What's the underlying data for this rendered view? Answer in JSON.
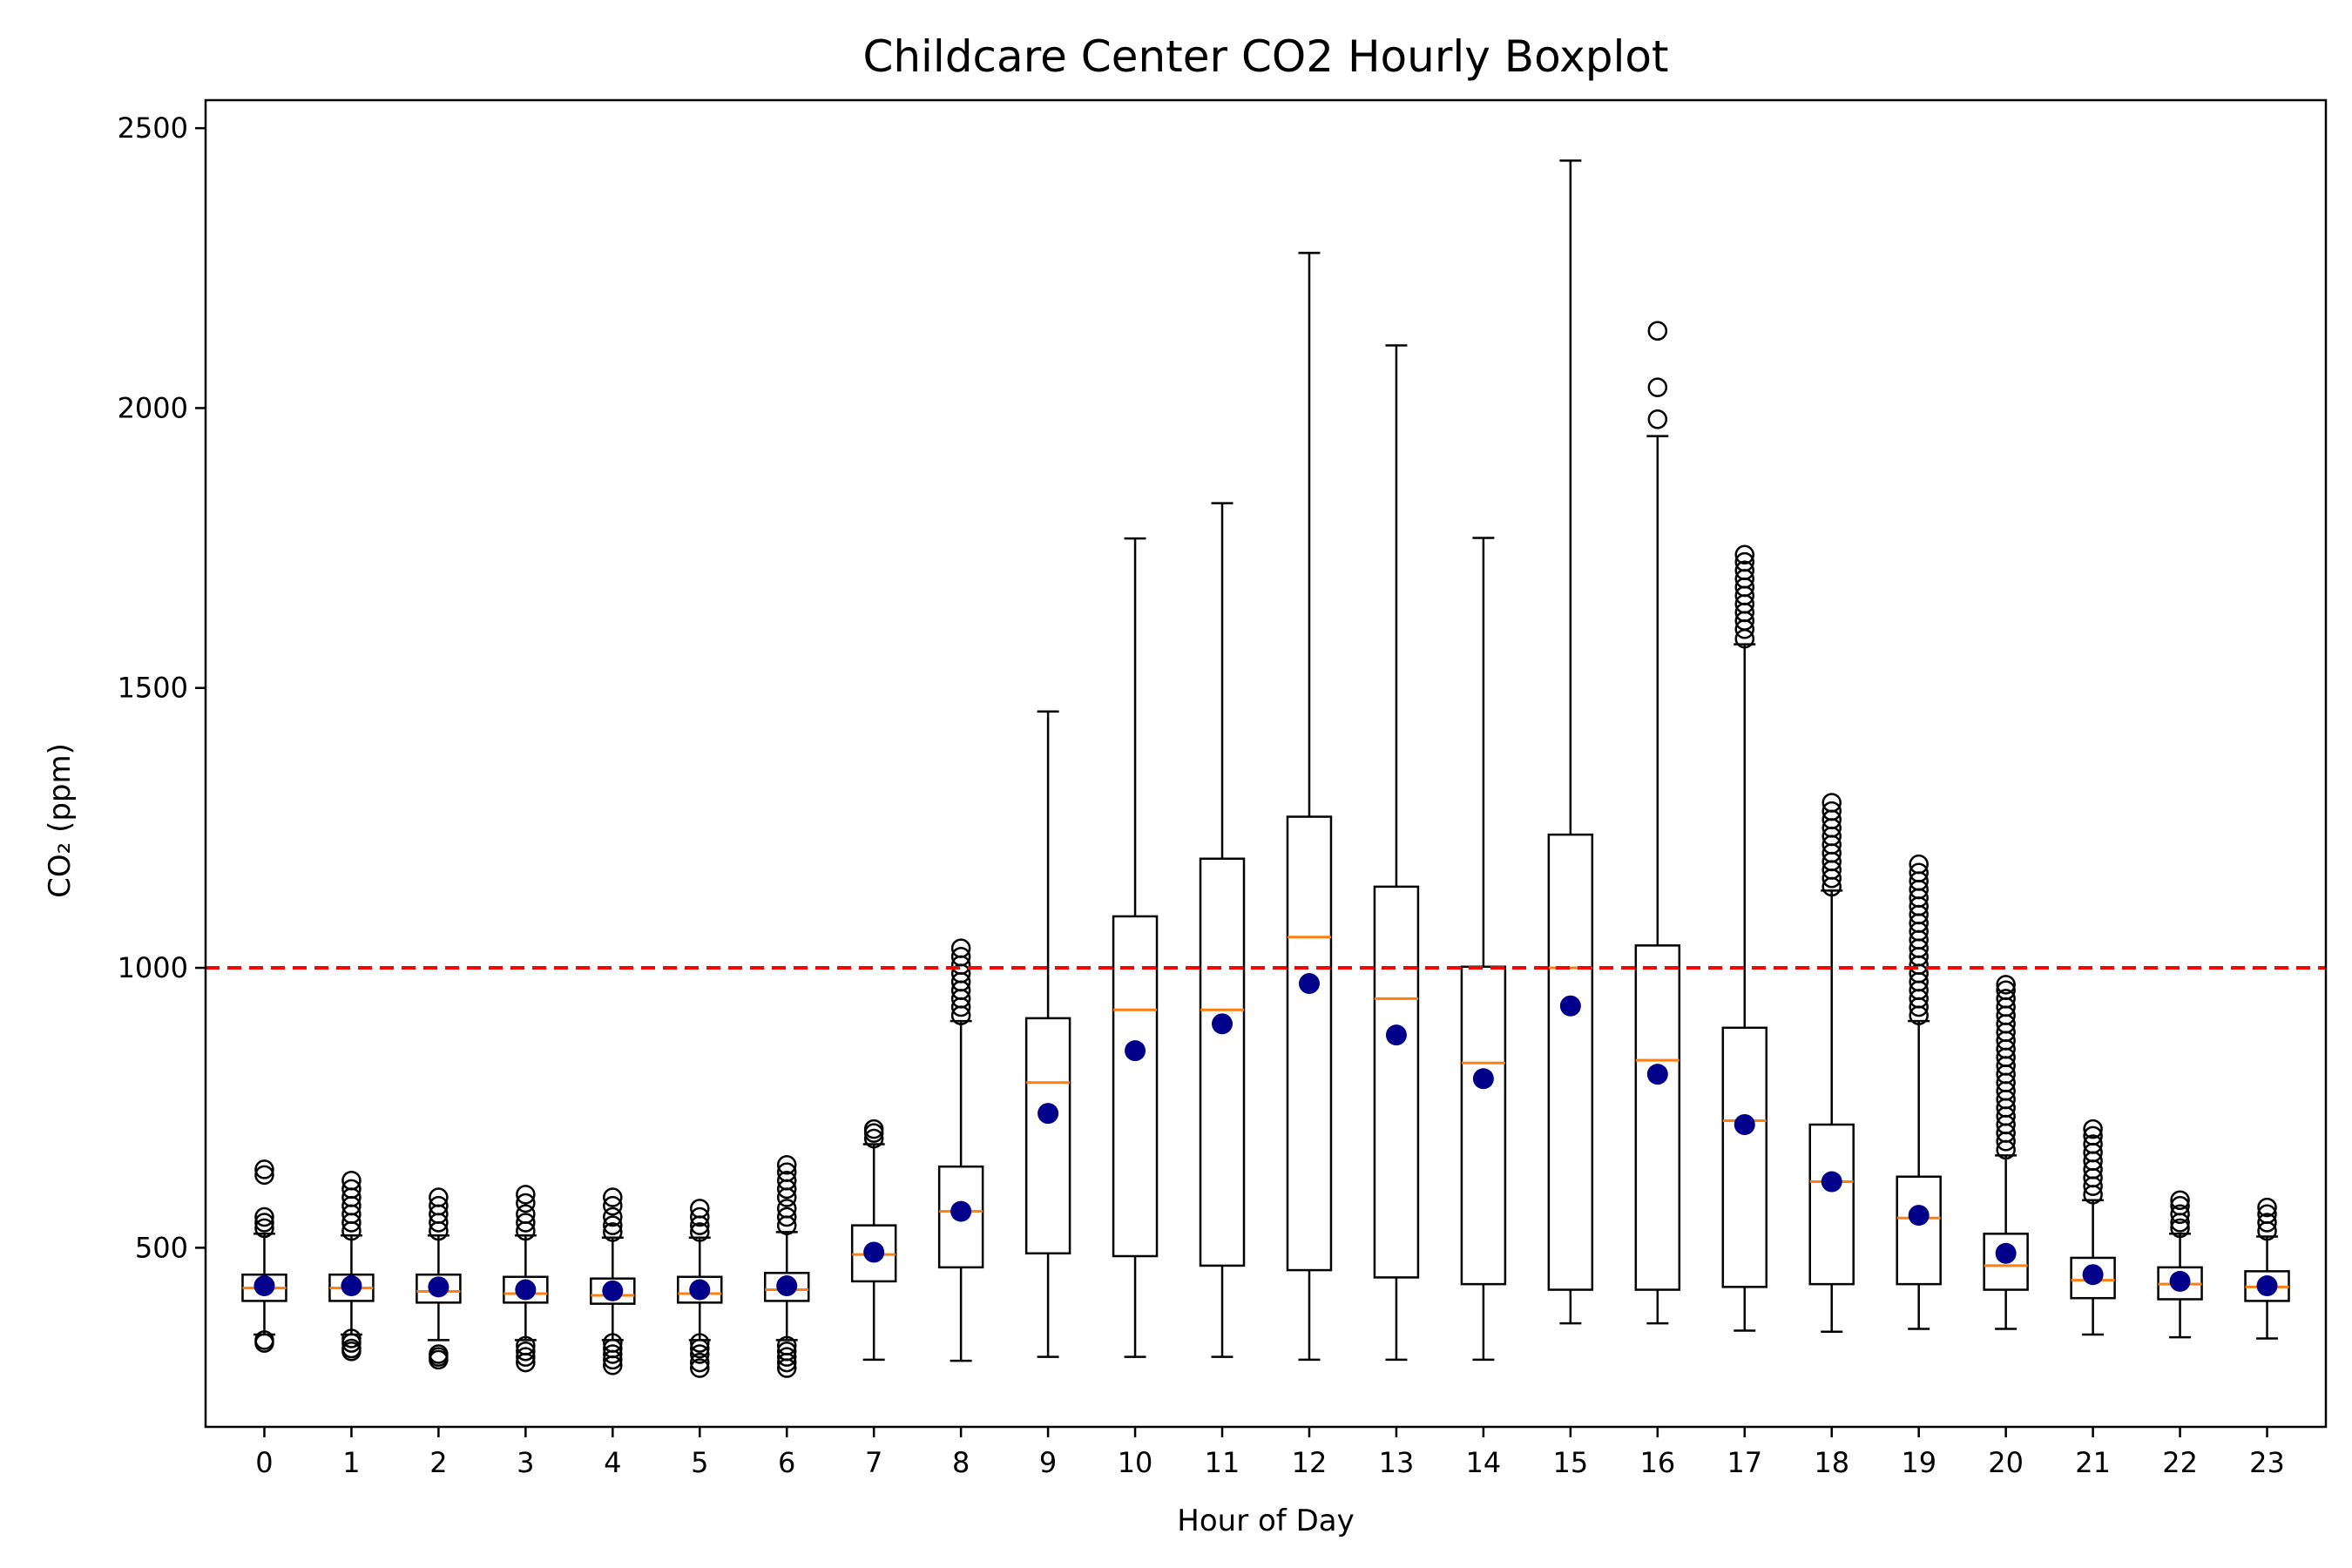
{
  "chart_data": {
    "type": "box",
    "title": "Childcare Center CO2 Hourly Boxplot",
    "xlabel": "Hour of Day",
    "ylabel": "CO₂ (ppm)",
    "ylim": [
      180,
      2550
    ],
    "yticks": [
      500,
      1000,
      1500,
      2000,
      2500
    ],
    "threshold": {
      "value": 1000,
      "color": "#ff0000",
      "style": "dashed"
    },
    "colors": {
      "box": "#000000",
      "median": "#ff7f0e",
      "mean": "#00008b",
      "threshold": "#ff0000"
    },
    "categories": [
      "0",
      "1",
      "2",
      "3",
      "4",
      "5",
      "6",
      "7",
      "8",
      "9",
      "10",
      "11",
      "12",
      "13",
      "14",
      "15",
      "16",
      "17",
      "18",
      "19",
      "20",
      "21",
      "22",
      "23"
    ],
    "boxes": [
      {
        "whislo": 345,
        "q1": 405,
        "med": 428,
        "q3": 452,
        "whishi": 525,
        "mean": 432,
        "fliers_low": [
          330,
          335
        ],
        "fliers_high": [
          535,
          545,
          555,
          630,
          640
        ]
      },
      {
        "whislo": 345,
        "q1": 405,
        "med": 428,
        "q3": 452,
        "whishi": 522,
        "mean": 432,
        "fliers_low": [
          315,
          320,
          330,
          338
        ],
        "fliers_high": [
          530,
          545,
          560,
          575,
          590,
          605,
          620
        ]
      },
      {
        "whislo": 335,
        "q1": 402,
        "med": 422,
        "q3": 452,
        "whishi": 522,
        "mean": 430,
        "fliers_low": [
          300,
          305,
          310
        ],
        "fliers_high": [
          530,
          545,
          560,
          575,
          590
        ]
      },
      {
        "whislo": 335,
        "q1": 402,
        "med": 418,
        "q3": 448,
        "whishi": 522,
        "mean": 425,
        "fliers_low": [
          295,
          305,
          315,
          325
        ],
        "fliers_high": [
          530,
          545,
          560,
          580,
          595
        ]
      },
      {
        "whislo": 335,
        "q1": 400,
        "med": 415,
        "q3": 445,
        "whishi": 518,
        "mean": 423,
        "fliers_low": [
          290,
          300,
          310,
          320,
          330
        ],
        "fliers_high": [
          528,
          540,
          555,
          575,
          590
        ]
      },
      {
        "whislo": 335,
        "q1": 402,
        "med": 418,
        "q3": 448,
        "whishi": 518,
        "mean": 425,
        "fliers_low": [
          285,
          295,
          310,
          320,
          330
        ],
        "fliers_high": [
          528,
          540,
          555,
          570
        ]
      },
      {
        "whislo": 335,
        "q1": 405,
        "med": 425,
        "q3": 455,
        "whishi": 528,
        "mean": 432,
        "fliers_low": [
          285,
          295,
          305,
          315,
          325
        ],
        "fliers_high": [
          540,
          555,
          570,
          590,
          605,
          620,
          635,
          648
        ]
      },
      {
        "whislo": 300,
        "q1": 440,
        "med": 488,
        "q3": 540,
        "whishi": 685,
        "mean": 492,
        "fliers_low": [],
        "fliers_high": [
          695,
          705,
          712
        ]
      },
      {
        "whislo": 298,
        "q1": 465,
        "med": 565,
        "q3": 645,
        "whishi": 905,
        "mean": 565,
        "fliers_low": [],
        "fliers_high": [
          915,
          930,
          945,
          960,
          975,
          990,
          1005,
          1020,
          1035
        ]
      },
      {
        "whislo": 305,
        "q1": 490,
        "med": 795,
        "q3": 910,
        "whishi": 1458,
        "mean": 740,
        "fliers_low": [],
        "fliers_high": []
      },
      {
        "whislo": 305,
        "q1": 485,
        "med": 925,
        "q3": 1092,
        "whishi": 1767,
        "mean": 852,
        "fliers_low": [],
        "fliers_high": []
      },
      {
        "whislo": 305,
        "q1": 468,
        "med": 925,
        "q3": 1195,
        "whishi": 1830,
        "mean": 900,
        "fliers_low": [],
        "fliers_high": []
      },
      {
        "whislo": 300,
        "q1": 460,
        "med": 1055,
        "q3": 1270,
        "whishi": 2277,
        "mean": 972,
        "fliers_low": [],
        "fliers_high": []
      },
      {
        "whislo": 300,
        "q1": 447,
        "med": 945,
        "q3": 1145,
        "whishi": 2112,
        "mean": 880,
        "fliers_low": [],
        "fliers_high": []
      },
      {
        "whislo": 300,
        "q1": 435,
        "med": 830,
        "q3": 1002,
        "whishi": 1768,
        "mean": 802,
        "fliers_low": [],
        "fliers_high": []
      },
      {
        "whislo": 365,
        "q1": 425,
        "med": 1000,
        "q3": 1238,
        "whishi": 2442,
        "mean": 932,
        "fliers_low": [],
        "fliers_high": []
      },
      {
        "whislo": 365,
        "q1": 425,
        "med": 835,
        "q3": 1040,
        "whishi": 1950,
        "mean": 810,
        "fliers_low": [],
        "fliers_high": [
          1980,
          2037,
          2138
        ]
      },
      {
        "whislo": 352,
        "q1": 430,
        "med": 727,
        "q3": 893,
        "whishi": 1578,
        "mean": 720,
        "fliers_low": [],
        "fliers_high": [
          1588,
          1605,
          1620,
          1635,
          1650,
          1665,
          1680,
          1695,
          1710,
          1725,
          1738
        ]
      },
      {
        "whislo": 350,
        "q1": 435,
        "med": 618,
        "q3": 720,
        "whishi": 1138,
        "mean": 618,
        "fliers_low": [],
        "fliers_high": [
          1145,
          1160,
          1175,
          1190,
          1205,
          1220,
          1235,
          1250,
          1265,
          1280,
          1295
        ]
      },
      {
        "whislo": 355,
        "q1": 435,
        "med": 553,
        "q3": 627,
        "whishi": 905,
        "mean": 558,
        "fliers_low": [],
        "fliers_high": [
          915,
          930,
          945,
          960,
          975,
          990,
          1005,
          1020,
          1035,
          1050,
          1065,
          1080,
          1095,
          1110,
          1125,
          1140,
          1155,
          1170,
          1185
        ]
      },
      {
        "whislo": 355,
        "q1": 425,
        "med": 468,
        "q3": 525,
        "whishi": 665,
        "mean": 490,
        "fliers_low": [],
        "fliers_high": [
          675,
          690,
          705,
          720,
          735,
          750,
          765,
          780,
          795,
          810,
          825,
          840,
          855,
          870,
          885,
          900,
          915,
          930,
          945,
          960,
          970
        ]
      },
      {
        "whislo": 345,
        "q1": 410,
        "med": 442,
        "q3": 482,
        "whishi": 585,
        "mean": 452,
        "fliers_low": [],
        "fliers_high": [
          595,
          610,
          625,
          640,
          655,
          670,
          685,
          700,
          712
        ]
      },
      {
        "whislo": 340,
        "q1": 408,
        "med": 435,
        "q3": 465,
        "whishi": 525,
        "mean": 440,
        "fliers_low": [],
        "fliers_high": [
          535,
          545,
          560,
          575,
          585
        ]
      },
      {
        "whislo": 338,
        "q1": 405,
        "med": 430,
        "q3": 458,
        "whishi": 520,
        "mean": 432,
        "fliers_low": [],
        "fliers_high": [
          530,
          545,
          560,
          572
        ]
      }
    ]
  }
}
